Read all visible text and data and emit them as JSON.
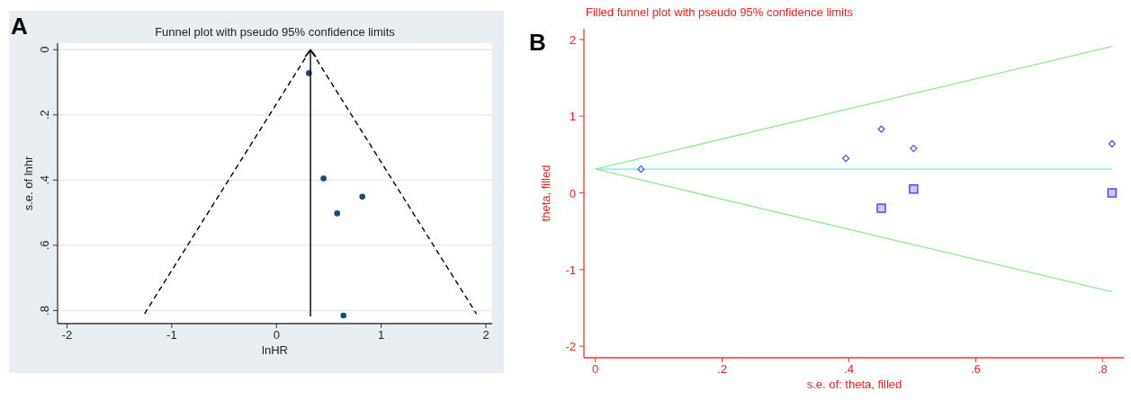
{
  "chart_data": [
    {
      "type": "scatter",
      "title": "Funnel plot with pseudo 95% confidence limits",
      "xlabel": "lnHR",
      "ylabel": "s.e. of lnhr",
      "annotations": [
        "A"
      ],
      "xlim": [
        -2.09,
        2.06
      ],
      "ylim": [
        0.84,
        -0.02
      ],
      "xticks": [
        -2,
        -1,
        0,
        1,
        2
      ],
      "yticks": [
        0,
        {
          "value": 0.2,
          "label": ".2"
        },
        {
          "value": 0.4,
          "label": ".4"
        },
        {
          "value": 0.6,
          "label": ".6"
        },
        {
          "value": 0.8,
          "label": ".8"
        }
      ],
      "grid": "y",
      "ref_lines": [
        {
          "axis": "x",
          "value": 0.325,
          "color": "#000000"
        }
      ],
      "series": [
        {
          "type": "line",
          "x": [
            -1.26,
            0.325,
            1.91
          ],
          "values": [
            0.81,
            0,
            0.81
          ],
          "color": "#000000",
          "line_style": "dashed",
          "marker": "none"
        },
        {
          "type": "scatter",
          "x": [
            0.31,
            0.45,
            0.82,
            0.58,
            0.64
          ],
          "values": [
            0.072,
            0.395,
            0.451,
            0.502,
            0.815
          ],
          "color": "#1a4a7a",
          "marker": "circle"
        }
      ]
    },
    {
      "type": "scatter",
      "title": "Filled funnel plot with pseudo 95% confidence limits",
      "xlabel": "s.e. of: theta, filled",
      "ylabel": "theta, filled",
      "annotations": [
        "B"
      ],
      "xlim": [
        -0.018,
        0.835
      ],
      "ylim": [
        -2.15,
        2.14
      ],
      "xticks": [
        0,
        {
          "value": 0.2,
          "label": ".2"
        },
        {
          "value": 0.4,
          "label": ".4"
        },
        {
          "value": 0.6,
          "label": ".6"
        },
        {
          "value": 0.8,
          "label": ".8"
        }
      ],
      "yticks": [
        -2,
        -1,
        0,
        1,
        2
      ],
      "series": [
        {
          "type": "line",
          "x": [
            0,
            0.815
          ],
          "values": [
            0.31,
            0.31
          ],
          "color": "#66eeee",
          "line_style": "solid",
          "marker": "none"
        },
        {
          "type": "line",
          "x": [
            0,
            0.815
          ],
          "values": [
            0.31,
            1.91
          ],
          "color": "#90e890",
          "line_style": "solid",
          "marker": "none"
        },
        {
          "type": "line",
          "x": [
            0,
            0.815
          ],
          "values": [
            0.31,
            -1.29
          ],
          "color": "#90e890",
          "line_style": "solid",
          "marker": "none"
        },
        {
          "type": "scatter",
          "x": [
            0.072,
            0.395,
            0.451,
            0.502,
            0.815
          ],
          "values": [
            0.31,
            0.45,
            0.83,
            0.58,
            0.64
          ],
          "color": "#4a4aff",
          "marker": "diamond"
        },
        {
          "type": "scatter",
          "x": [
            0.451,
            0.502,
            0.815
          ],
          "values": [
            -0.2,
            0.05,
            0
          ],
          "color": "#4a4aff",
          "marker": "square"
        }
      ]
    }
  ]
}
